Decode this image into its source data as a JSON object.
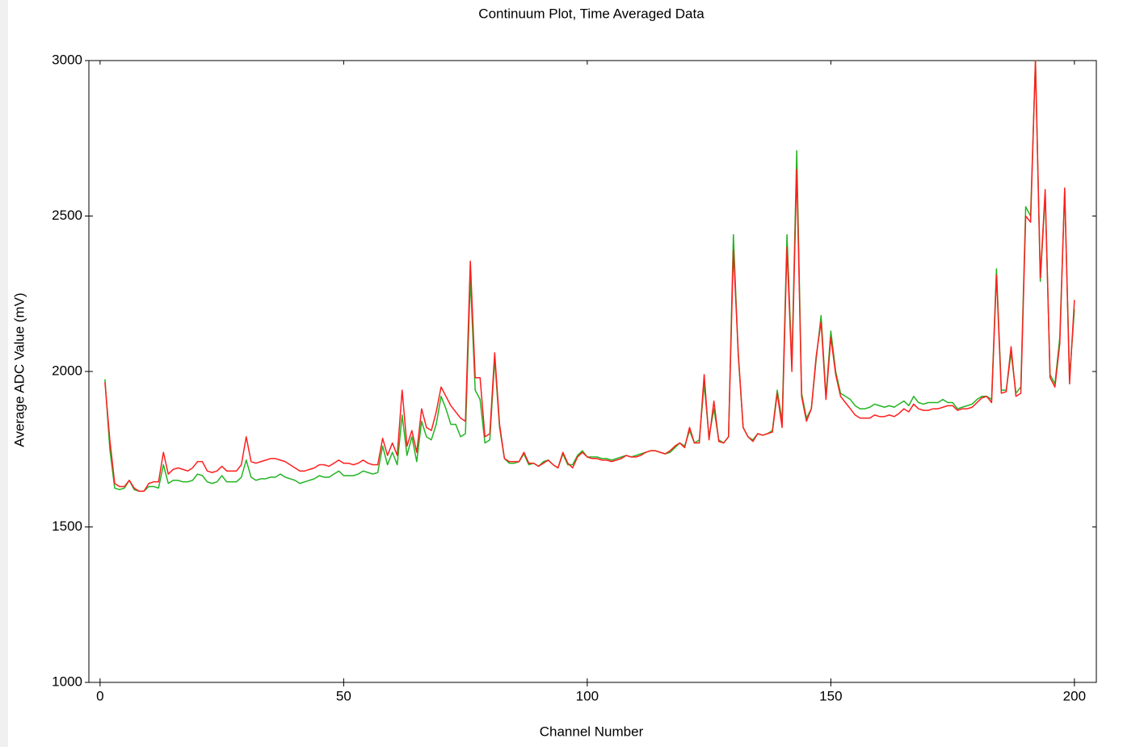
{
  "chart_data": {
    "type": "line",
    "title": "Continuum Plot, Time Averaged Data",
    "x_label": "Channel Number",
    "y_label": "Average  ADC Value  (mV)",
    "x": [
      1,
      2,
      3,
      4,
      5,
      6,
      7,
      8,
      9,
      10,
      11,
      12,
      13,
      14,
      15,
      16,
      17,
      18,
      19,
      20,
      21,
      22,
      23,
      24,
      25,
      26,
      27,
      28,
      29,
      30,
      31,
      32,
      33,
      34,
      35,
      36,
      37,
      38,
      39,
      40,
      41,
      42,
      43,
      44,
      45,
      46,
      47,
      48,
      49,
      50,
      51,
      52,
      53,
      54,
      55,
      56,
      57,
      58,
      59,
      60,
      61,
      62,
      63,
      64,
      65,
      66,
      67,
      68,
      69,
      70,
      71,
      72,
      73,
      74,
      75,
      76,
      77,
      78,
      79,
      80,
      81,
      82,
      83,
      84,
      85,
      86,
      87,
      88,
      89,
      90,
      91,
      92,
      93,
      94,
      95,
      96,
      97,
      98,
      99,
      100,
      101,
      102,
      103,
      104,
      105,
      106,
      107,
      108,
      109,
      110,
      111,
      112,
      113,
      114,
      115,
      116,
      117,
      118,
      119,
      120,
      121,
      122,
      123,
      124,
      125,
      126,
      127,
      128,
      129,
      130,
      131,
      132,
      133,
      134,
      135,
      136,
      137,
      138,
      139,
      140,
      141,
      142,
      143,
      144,
      145,
      146,
      147,
      148,
      149,
      150,
      151,
      152,
      153,
      154,
      155,
      156,
      157,
      158,
      159,
      160,
      161,
      162,
      163,
      164,
      165,
      166,
      167,
      168,
      169,
      170,
      171,
      172,
      173,
      174,
      175,
      176,
      177,
      178,
      179,
      180,
      181,
      182,
      183,
      184,
      185,
      186,
      187,
      188,
      189,
      190,
      191,
      192,
      193,
      194,
      195,
      196,
      197,
      198,
      199,
      200
    ],
    "series": [
      {
        "color": "#22b422",
        "values": [
          1975,
          1750,
          1625,
          1620,
          1625,
          1650,
          1620,
          1615,
          1615,
          1630,
          1630,
          1625,
          1700,
          1640,
          1650,
          1650,
          1645,
          1645,
          1650,
          1670,
          1665,
          1645,
          1640,
          1645,
          1665,
          1645,
          1645,
          1645,
          1660,
          1715,
          1660,
          1650,
          1655,
          1655,
          1660,
          1660,
          1670,
          1660,
          1655,
          1650,
          1640,
          1645,
          1650,
          1655,
          1665,
          1660,
          1660,
          1670,
          1680,
          1665,
          1665,
          1665,
          1670,
          1680,
          1675,
          1670,
          1675,
          1760,
          1700,
          1740,
          1700,
          1860,
          1730,
          1790,
          1710,
          1840,
          1790,
          1780,
          1830,
          1920,
          1880,
          1830,
          1830,
          1790,
          1800,
          2300,
          1940,
          1910,
          1770,
          1780,
          2040,
          1820,
          1720,
          1705,
          1705,
          1710,
          1735,
          1700,
          1705,
          1695,
          1710,
          1715,
          1700,
          1690,
          1735,
          1700,
          1700,
          1730,
          1745,
          1725,
          1725,
          1725,
          1720,
          1720,
          1715,
          1720,
          1725,
          1730,
          1725,
          1730,
          1735,
          1740,
          1745,
          1745,
          1740,
          1735,
          1740,
          1755,
          1770,
          1760,
          1810,
          1770,
          1780,
          1960,
          1790,
          1880,
          1780,
          1770,
          1790,
          2440,
          2050,
          1820,
          1790,
          1780,
          1800,
          1795,
          1800,
          1810,
          1940,
          1840,
          2440,
          2020,
          2710,
          1930,
          1850,
          1880,
          2040,
          2180,
          1920,
          2130,
          2000,
          1930,
          1920,
          1910,
          1890,
          1880,
          1880,
          1885,
          1895,
          1890,
          1885,
          1890,
          1885,
          1895,
          1905,
          1890,
          1920,
          1900,
          1895,
          1900,
          1900,
          1900,
          1910,
          1900,
          1900,
          1880,
          1885,
          1890,
          1895,
          1910,
          1920,
          1920,
          1910,
          2330,
          1940,
          1940,
          2060,
          1930,
          1950,
          2530,
          2500,
          3000,
          2290,
          2570,
          1990,
          1960,
          2110,
          2580,
          1980,
          2200
        ]
      },
      {
        "color": "#ff1e1e",
        "values": [
          1965,
          1780,
          1640,
          1630,
          1630,
          1650,
          1625,
          1615,
          1615,
          1640,
          1645,
          1645,
          1740,
          1670,
          1685,
          1690,
          1685,
          1680,
          1690,
          1710,
          1710,
          1680,
          1675,
          1680,
          1695,
          1680,
          1680,
          1680,
          1700,
          1790,
          1710,
          1705,
          1710,
          1715,
          1720,
          1720,
          1715,
          1710,
          1700,
          1690,
          1680,
          1680,
          1685,
          1690,
          1700,
          1700,
          1695,
          1705,
          1715,
          1705,
          1705,
          1700,
          1705,
          1715,
          1705,
          1700,
          1700,
          1785,
          1730,
          1770,
          1730,
          1940,
          1760,
          1810,
          1740,
          1880,
          1820,
          1810,
          1870,
          1950,
          1920,
          1890,
          1870,
          1850,
          1840,
          2355,
          1980,
          1980,
          1790,
          1800,
          2060,
          1830,
          1720,
          1710,
          1710,
          1710,
          1740,
          1705,
          1705,
          1695,
          1705,
          1715,
          1700,
          1690,
          1740,
          1705,
          1690,
          1725,
          1740,
          1725,
          1720,
          1720,
          1715,
          1715,
          1710,
          1715,
          1720,
          1730,
          1725,
          1725,
          1730,
          1740,
          1745,
          1745,
          1740,
          1735,
          1745,
          1760,
          1770,
          1755,
          1820,
          1770,
          1770,
          1990,
          1780,
          1905,
          1775,
          1770,
          1790,
          2390,
          2060,
          1820,
          1790,
          1775,
          1800,
          1795,
          1800,
          1805,
          1930,
          1820,
          2400,
          2000,
          2650,
          1920,
          1840,
          1880,
          2050,
          2160,
          1910,
          2110,
          1990,
          1920,
          1900,
          1880,
          1860,
          1850,
          1850,
          1850,
          1860,
          1855,
          1855,
          1860,
          1855,
          1865,
          1880,
          1870,
          1895,
          1880,
          1875,
          1875,
          1880,
          1880,
          1885,
          1890,
          1890,
          1875,
          1880,
          1880,
          1885,
          1900,
          1915,
          1920,
          1900,
          2310,
          1930,
          1935,
          2080,
          1920,
          1930,
          2500,
          2480,
          3000,
          2300,
          2585,
          1980,
          1950,
          2090,
          2590,
          1960,
          2230
        ]
      }
    ],
    "xlim": [
      -2.3,
      204.5
    ],
    "ylim": [
      1000,
      3000
    ],
    "xticks": [
      0,
      50,
      100,
      150,
      200
    ],
    "yticks": [
      1000,
      1500,
      2000,
      2500,
      3000
    ]
  }
}
